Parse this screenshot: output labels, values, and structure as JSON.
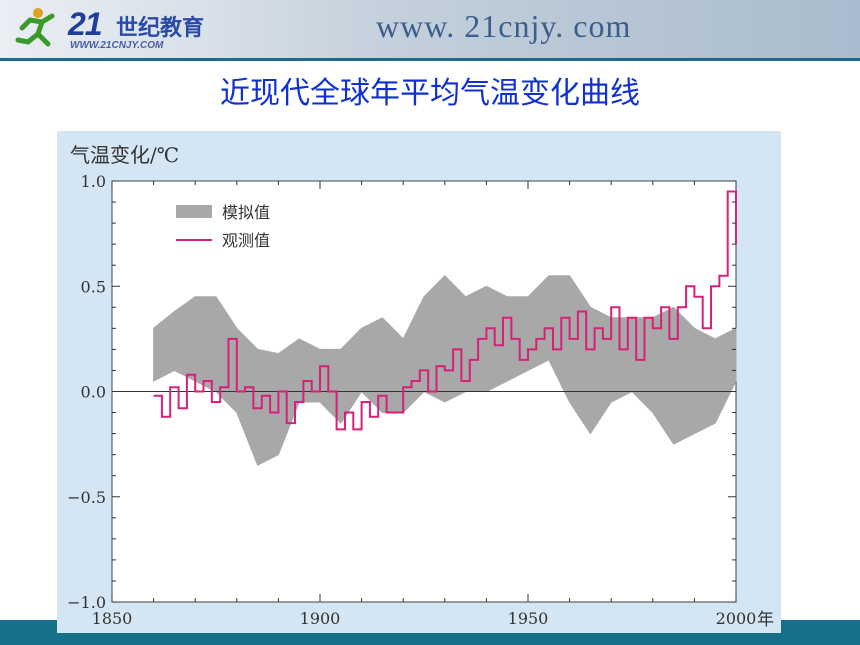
{
  "header": {
    "logo_number": "21",
    "logo_text": "世纪教育",
    "logo_url": "WWW.21CNJY.COM",
    "site_url": "www. 21cnjy. com"
  },
  "page_title": "近现代全球年平均气温变化曲线",
  "colors": {
    "simulated": "#a8a8a8",
    "observed": "#d6207a",
    "title": "#1030d0",
    "chart_bg": "#d4e6f3",
    "banner_bottom": "#17708a"
  },
  "chart_data": {
    "type": "line",
    "ylabel": "气温变化/℃",
    "xlabel": "年",
    "xlim": [
      1850,
      2000
    ],
    "ylim": [
      -1.0,
      1.0
    ],
    "x_ticks": [
      "1850",
      "1900",
      "1950",
      "2000"
    ],
    "y_ticks": [
      "1.0",
      "0.5",
      "0.0",
      "−0.5",
      "−1.0"
    ],
    "legend_position": "top-left",
    "grid": false,
    "series": [
      {
        "name": "模拟值",
        "type": "area",
        "color": "#a8a8a8",
        "x": [
          1860,
          1865,
          1870,
          1875,
          1880,
          1885,
          1890,
          1895,
          1900,
          1905,
          1910,
          1915,
          1920,
          1925,
          1930,
          1935,
          1940,
          1945,
          1950,
          1955,
          1960,
          1965,
          1970,
          1975,
          1980,
          1985,
          1990,
          1995,
          2000
        ],
        "low": [
          0.05,
          0.1,
          0.05,
          0.0,
          -0.1,
          -0.35,
          -0.3,
          -0.05,
          -0.05,
          -0.15,
          0.0,
          -0.1,
          -0.1,
          0.0,
          -0.05,
          0.0,
          0.0,
          0.05,
          0.1,
          0.15,
          -0.05,
          -0.2,
          -0.05,
          0.0,
          -0.1,
          -0.25,
          -0.2,
          -0.15,
          0.05
        ],
        "high": [
          0.3,
          0.38,
          0.45,
          0.45,
          0.3,
          0.2,
          0.18,
          0.25,
          0.2,
          0.2,
          0.3,
          0.35,
          0.25,
          0.45,
          0.55,
          0.45,
          0.5,
          0.45,
          0.45,
          0.55,
          0.55,
          0.4,
          0.35,
          0.35,
          0.35,
          0.4,
          0.3,
          0.25,
          0.3
        ]
      },
      {
        "name": "观测值",
        "type": "line",
        "color": "#d6207a",
        "x": [
          1860,
          1862,
          1864,
          1866,
          1868,
          1870,
          1872,
          1874,
          1876,
          1878,
          1880,
          1882,
          1884,
          1886,
          1888,
          1890,
          1892,
          1894,
          1896,
          1898,
          1900,
          1902,
          1904,
          1906,
          1908,
          1910,
          1912,
          1914,
          1916,
          1918,
          1920,
          1922,
          1924,
          1926,
          1928,
          1930,
          1932,
          1934,
          1936,
          1938,
          1940,
          1942,
          1944,
          1946,
          1948,
          1950,
          1952,
          1954,
          1956,
          1958,
          1960,
          1962,
          1964,
          1966,
          1968,
          1970,
          1972,
          1974,
          1976,
          1978,
          1980,
          1982,
          1984,
          1986,
          1988,
          1990,
          1992,
          1994,
          1996,
          1998,
          2000
        ],
        "y": [
          -0.02,
          -0.12,
          0.02,
          -0.08,
          0.08,
          0.0,
          0.05,
          -0.05,
          0.02,
          0.25,
          0.0,
          0.02,
          -0.08,
          -0.02,
          -0.1,
          0.0,
          -0.15,
          -0.05,
          0.05,
          0.0,
          0.12,
          0.0,
          -0.18,
          -0.1,
          -0.18,
          -0.05,
          -0.12,
          -0.02,
          -0.1,
          -0.1,
          0.02,
          0.05,
          0.1,
          0.0,
          0.12,
          0.1,
          0.2,
          0.05,
          0.15,
          0.25,
          0.3,
          0.22,
          0.35,
          0.25,
          0.15,
          0.2,
          0.25,
          0.3,
          0.2,
          0.35,
          0.25,
          0.38,
          0.2,
          0.3,
          0.25,
          0.4,
          0.2,
          0.35,
          0.15,
          0.35,
          0.3,
          0.4,
          0.25,
          0.4,
          0.5,
          0.45,
          0.3,
          0.5,
          0.55,
          0.95,
          0.7
        ]
      }
    ]
  }
}
